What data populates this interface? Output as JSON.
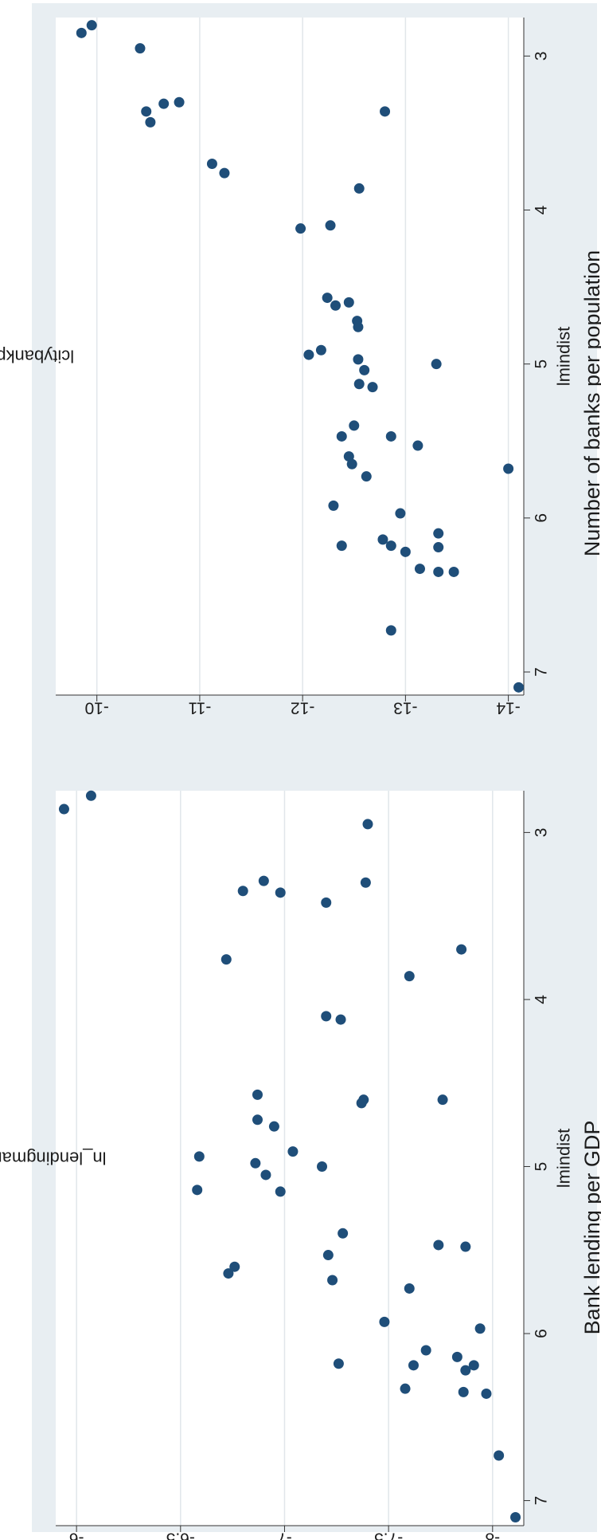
{
  "chart_data": [
    {
      "type": "scatter",
      "title": "Number of banks per population",
      "xlabel": "lmindist",
      "ylabel": "lcitybankpop",
      "xlim": [
        2.75,
        7.15
      ],
      "ylim": [
        -14.15,
        -9.6
      ],
      "xticks": [
        "3",
        "4",
        "5",
        "6",
        "7"
      ],
      "yticks": [
        "-10",
        "-11",
        "-12",
        "-13",
        "-14"
      ],
      "grid": true,
      "marker_color": "#1f4e79",
      "points": [
        {
          "x": 2.85,
          "y": -9.85
        },
        {
          "x": 2.8,
          "y": -9.95
        },
        {
          "x": 2.95,
          "y": -10.42
        },
        {
          "x": 3.3,
          "y": -10.8
        },
        {
          "x": 3.31,
          "y": -10.65
        },
        {
          "x": 3.36,
          "y": -10.48
        },
        {
          "x": 3.43,
          "y": -10.52
        },
        {
          "x": 3.36,
          "y": -12.8
        },
        {
          "x": 3.7,
          "y": -11.12
        },
        {
          "x": 3.76,
          "y": -11.24
        },
        {
          "x": 3.86,
          "y": -12.55
        },
        {
          "x": 4.1,
          "y": -12.27
        },
        {
          "x": 4.12,
          "y": -11.98
        },
        {
          "x": 4.57,
          "y": -12.24
        },
        {
          "x": 4.6,
          "y": -12.45
        },
        {
          "x": 4.62,
          "y": -12.32
        },
        {
          "x": 4.72,
          "y": -12.53
        },
        {
          "x": 4.76,
          "y": -12.54
        },
        {
          "x": 4.91,
          "y": -12.18
        },
        {
          "x": 4.94,
          "y": -12.06
        },
        {
          "x": 4.97,
          "y": -12.54
        },
        {
          "x": 5.0,
          "y": -13.3
        },
        {
          "x": 5.04,
          "y": -12.6
        },
        {
          "x": 5.13,
          "y": -12.55
        },
        {
          "x": 5.15,
          "y": -12.68
        },
        {
          "x": 5.4,
          "y": -12.5
        },
        {
          "x": 5.47,
          "y": -12.38
        },
        {
          "x": 5.47,
          "y": -12.86
        },
        {
          "x": 5.53,
          "y": -13.12
        },
        {
          "x": 5.6,
          "y": -12.45
        },
        {
          "x": 5.65,
          "y": -12.48
        },
        {
          "x": 5.68,
          "y": -14.0
        },
        {
          "x": 5.73,
          "y": -12.62
        },
        {
          "x": 5.92,
          "y": -12.3
        },
        {
          "x": 5.97,
          "y": -12.95
        },
        {
          "x": 6.1,
          "y": -13.32
        },
        {
          "x": 6.14,
          "y": -12.78
        },
        {
          "x": 6.18,
          "y": -12.38
        },
        {
          "x": 6.18,
          "y": -12.86
        },
        {
          "x": 6.19,
          "y": -13.32
        },
        {
          "x": 6.22,
          "y": -13.0
        },
        {
          "x": 6.33,
          "y": -13.14
        },
        {
          "x": 6.35,
          "y": -13.32
        },
        {
          "x": 6.35,
          "y": -13.47
        },
        {
          "x": 6.73,
          "y": -12.86
        },
        {
          "x": 7.1,
          "y": -14.1
        }
      ]
    },
    {
      "type": "scatter",
      "title": "Bank lending per GDP",
      "xlabel": "lmindist",
      "ylabel": "ln_lendingmanuGDP",
      "xlim": [
        2.75,
        7.15
      ],
      "ylim": [
        -8.15,
        -5.9
      ],
      "xticks": [
        "3",
        "4",
        "5",
        "6",
        "7"
      ],
      "yticks": [
        "-6",
        "-6.5",
        "-7",
        "-7.5",
        "-8"
      ],
      "grid": true,
      "marker_color": "#1f4e79",
      "points": [
        {
          "x": 2.86,
          "y": -5.94
        },
        {
          "x": 2.78,
          "y": -6.07
        },
        {
          "x": 2.95,
          "y": -7.4
        },
        {
          "x": 3.29,
          "y": -6.9
        },
        {
          "x": 3.3,
          "y": -7.39
        },
        {
          "x": 3.35,
          "y": -6.8
        },
        {
          "x": 3.36,
          "y": -6.98
        },
        {
          "x": 3.42,
          "y": -7.2
        },
        {
          "x": 3.7,
          "y": -7.85
        },
        {
          "x": 3.76,
          "y": -6.72
        },
        {
          "x": 3.86,
          "y": -7.6
        },
        {
          "x": 4.1,
          "y": -7.2
        },
        {
          "x": 4.12,
          "y": -7.27
        },
        {
          "x": 4.57,
          "y": -6.87
        },
        {
          "x": 4.6,
          "y": -7.38
        },
        {
          "x": 4.62,
          "y": -7.37
        },
        {
          "x": 4.6,
          "y": -7.76
        },
        {
          "x": 4.72,
          "y": -6.87
        },
        {
          "x": 4.76,
          "y": -6.95
        },
        {
          "x": 4.91,
          "y": -7.04
        },
        {
          "x": 4.94,
          "y": -6.59
        },
        {
          "x": 4.98,
          "y": -6.86
        },
        {
          "x": 5.0,
          "y": -7.18
        },
        {
          "x": 5.05,
          "y": -6.91
        },
        {
          "x": 5.14,
          "y": -6.58
        },
        {
          "x": 5.15,
          "y": -6.98
        },
        {
          "x": 5.4,
          "y": -7.28
        },
        {
          "x": 5.47,
          "y": -7.74
        },
        {
          "x": 5.48,
          "y": -7.87
        },
        {
          "x": 5.53,
          "y": -7.21
        },
        {
          "x": 5.6,
          "y": -6.76
        },
        {
          "x": 5.64,
          "y": -6.73
        },
        {
          "x": 5.68,
          "y": -7.23
        },
        {
          "x": 5.73,
          "y": -7.6
        },
        {
          "x": 5.93,
          "y": -7.48
        },
        {
          "x": 5.97,
          "y": -7.94
        },
        {
          "x": 6.1,
          "y": -7.68
        },
        {
          "x": 6.14,
          "y": -7.83
        },
        {
          "x": 6.18,
          "y": -7.26
        },
        {
          "x": 6.19,
          "y": -7.62
        },
        {
          "x": 6.19,
          "y": -7.91
        },
        {
          "x": 6.22,
          "y": -7.87
        },
        {
          "x": 6.33,
          "y": -7.58
        },
        {
          "x": 6.35,
          "y": -7.86
        },
        {
          "x": 6.36,
          "y": -7.97
        },
        {
          "x": 6.73,
          "y": -8.03
        },
        {
          "x": 7.1,
          "y": -8.11
        }
      ]
    }
  ]
}
